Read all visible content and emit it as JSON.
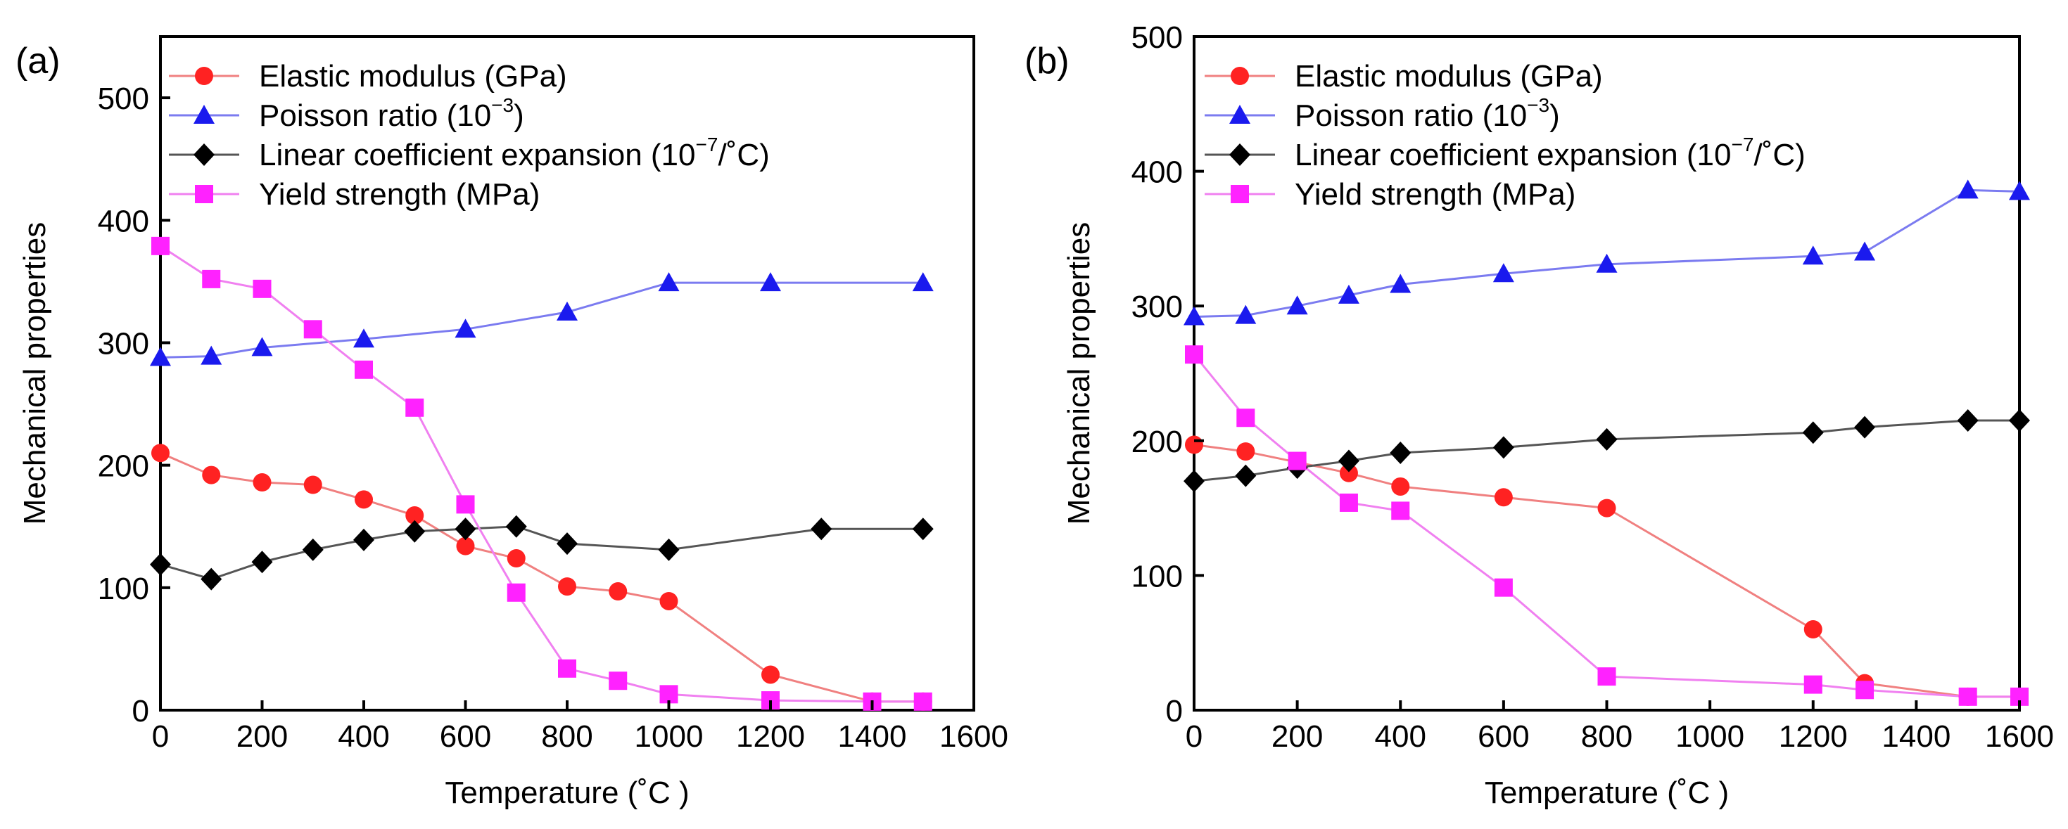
{
  "chart_data": [
    {
      "type": "line",
      "panel_label": "(a)",
      "xlabel": "Temperature (˚C )",
      "ylabel": "Mechanical properties",
      "xlim": [
        0,
        1600
      ],
      "ylim": [
        0,
        550
      ],
      "xticks": [
        0,
        200,
        400,
        600,
        800,
        1000,
        1200,
        1400,
        1600
      ],
      "yticks": [
        0,
        100,
        200,
        300,
        400,
        500
      ],
      "legend_position": "top-left",
      "series": [
        {
          "name": "Elastic modulus",
          "unit_suffix": " (GPa)",
          "marker": "circle",
          "color": "#ff2222",
          "line_color": "#f08080",
          "x": [
            0,
            100,
            200,
            300,
            400,
            500,
            600,
            700,
            800,
            900,
            1000,
            1200,
            1400,
            1500
          ],
          "y": [
            210,
            192,
            186,
            184,
            172,
            159,
            134,
            124,
            101,
            97,
            89,
            29,
            7,
            7
          ]
        },
        {
          "name": "Poisson ratio",
          "unit_prefix": " (10",
          "unit_sup": "−3",
          "unit_post": ")",
          "marker": "triangle",
          "color": "#1a1aee",
          "line_color": "#7b7bf0",
          "x": [
            0,
            100,
            200,
            400,
            600,
            800,
            1000,
            1200,
            1500
          ],
          "y": [
            288,
            289,
            296,
            303,
            311,
            325,
            349,
            349,
            349
          ]
        },
        {
          "name": "Linear coefficient expansion",
          "unit_prefix": " (10",
          "unit_sup": "−7",
          "unit_post": "/˚C)",
          "marker": "diamond",
          "color": "#000000",
          "line_color": "#555555",
          "x": [
            0,
            100,
            200,
            300,
            400,
            500,
            600,
            700,
            800,
            1000,
            1300,
            1500
          ],
          "y": [
            119,
            107,
            121,
            131,
            139,
            146,
            148,
            150,
            136,
            131,
            148,
            148
          ]
        },
        {
          "name": "Yield strength",
          "unit_suffix": " (MPa)",
          "marker": "square",
          "color": "#ff22ff",
          "line_color": "#f080f0",
          "x": [
            0,
            100,
            200,
            300,
            400,
            500,
            600,
            700,
            800,
            900,
            1000,
            1200,
            1400,
            1500
          ],
          "y": [
            379,
            352,
            344,
            311,
            278,
            247,
            168,
            96,
            34,
            24,
            13,
            8,
            7,
            7
          ]
        }
      ]
    },
    {
      "type": "line",
      "panel_label": "(b)",
      "xlabel": "Temperature (˚C )",
      "ylabel": "Mechanical properties",
      "xlim": [
        0,
        1600
      ],
      "ylim": [
        0,
        500
      ],
      "xticks": [
        0,
        200,
        400,
        600,
        800,
        1000,
        1200,
        1400,
        1600
      ],
      "yticks": [
        0,
        100,
        200,
        300,
        400,
        500
      ],
      "legend_position": "top-left",
      "series": [
        {
          "name": "Elastic modulus",
          "unit_suffix": " (GPa)",
          "marker": "circle",
          "color": "#ff2222",
          "line_color": "#f08080",
          "x": [
            0,
            100,
            200,
            300,
            400,
            600,
            800,
            1200,
            1300,
            1500,
            1600
          ],
          "y": [
            197,
            192,
            184,
            176,
            166,
            158,
            150,
            60,
            20,
            10,
            10
          ]
        },
        {
          "name": "Poisson ratio",
          "unit_prefix": " (10",
          "unit_sup": "−3",
          "unit_post": ")",
          "marker": "triangle",
          "color": "#1a1aee",
          "line_color": "#7b7bf0",
          "x": [
            0,
            100,
            200,
            300,
            400,
            600,
            800,
            1200,
            1300,
            1500,
            1600
          ],
          "y": [
            292,
            293,
            300,
            308,
            316,
            324,
            331,
            337,
            340,
            386,
            385
          ]
        },
        {
          "name": "Linear coefficient expansion",
          "unit_prefix": " (10",
          "unit_sup": "−7",
          "unit_post": "/˚C)",
          "marker": "diamond",
          "color": "#000000",
          "line_color": "#555555",
          "x": [
            0,
            100,
            200,
            300,
            400,
            600,
            800,
            1200,
            1300,
            1500,
            1600
          ],
          "y": [
            170,
            174,
            180,
            185,
            191,
            195,
            201,
            206,
            210,
            215,
            215
          ]
        },
        {
          "name": "Yield strength",
          "unit_suffix": " (MPa)",
          "marker": "square",
          "color": "#ff22ff",
          "line_color": "#f080f0",
          "x": [
            0,
            100,
            200,
            300,
            400,
            600,
            800,
            1200,
            1300,
            1500,
            1600
          ],
          "y": [
            264,
            217,
            185,
            154,
            148,
            91,
            25,
            19,
            15,
            10,
            10
          ]
        }
      ]
    }
  ]
}
